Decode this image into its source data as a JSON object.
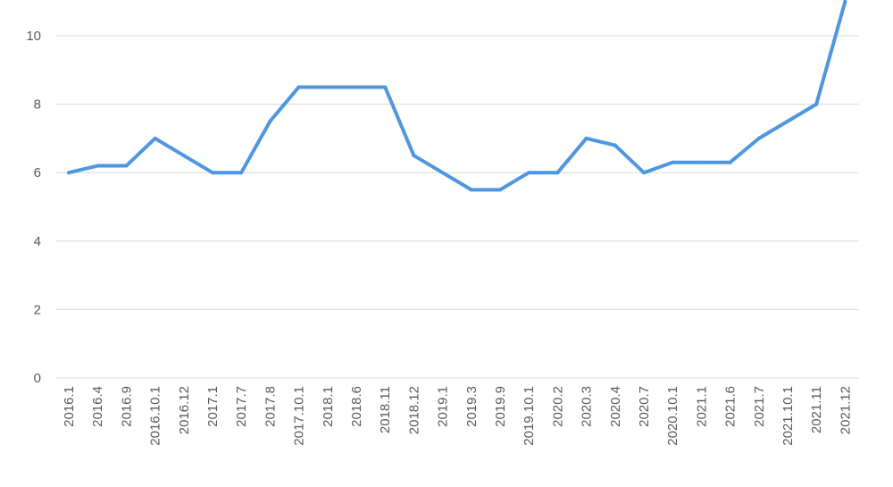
{
  "chart_data": {
    "type": "line",
    "title": "",
    "xlabel": "",
    "ylabel": "",
    "grid": true,
    "legend": "none",
    "ylim": [
      0,
      11
    ],
    "yticks": [
      "0",
      "2",
      "4",
      "6",
      "8",
      "10"
    ],
    "categories": [
      "2016.1",
      "2016.4",
      "2016.9",
      "2016.10.1",
      "2016.12",
      "2017.1",
      "2017.7",
      "2017.8",
      "2017.10.1",
      "2018.1",
      "2018.6",
      "2018.11",
      "2018.12",
      "2019.1",
      "2019.3",
      "2019.9",
      "2019.10.1",
      "2020.2",
      "2020.3",
      "2020.4",
      "2020.7",
      "2020.10.1",
      "2021.1",
      "2021.6",
      "2021.7",
      "2021.10.1",
      "2021.11",
      "2021.12"
    ],
    "series": [
      {
        "values": [
          6.0,
          6.2,
          6.2,
          7.0,
          6.5,
          6.0,
          6.0,
          7.5,
          8.5,
          8.5,
          8.5,
          8.5,
          6.5,
          6.0,
          5.5,
          5.5,
          6.0,
          6.0,
          7.0,
          6.8,
          6.0,
          6.3,
          6.3,
          6.3,
          7.0,
          7.5,
          8.0,
          11.0
        ],
        "color": "#4f96e0"
      }
    ]
  }
}
